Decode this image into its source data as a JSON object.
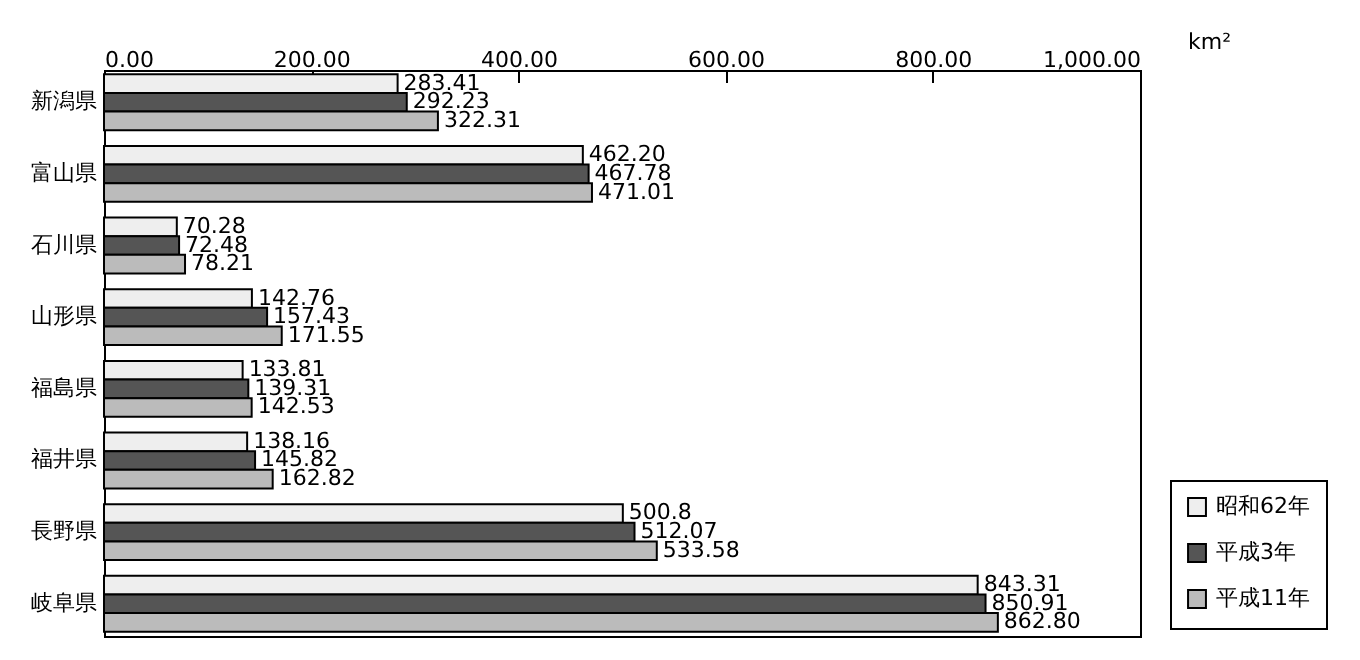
{
  "chart_data": {
    "type": "bar",
    "orientation": "horizontal",
    "xlabel": "km²",
    "categories": [
      "新潟県",
      "富山県",
      "石川県",
      "山形県",
      "福島県",
      "福井県",
      "長野県",
      "岐阜県"
    ],
    "series": [
      {
        "name": "昭和62年",
        "color": "#eeeeee",
        "values": [
          283.41,
          462.2,
          70.28,
          142.76,
          133.81,
          138.16,
          500.8,
          843.31
        ],
        "value_labels": [
          "283.41",
          "462.20",
          "70.28",
          "142.76",
          "133.81",
          "138.16",
          "500.8",
          "843.31"
        ]
      },
      {
        "name": "平成3年",
        "color": "#555555",
        "values": [
          292.23,
          467.78,
          72.48,
          157.43,
          139.31,
          145.82,
          512.07,
          850.91
        ],
        "value_labels": [
          "292.23",
          "467.78",
          "72.48",
          "157.43",
          "139.31",
          "145.82",
          "512.07",
          "850.91"
        ]
      },
      {
        "name": "平成11年",
        "color": "#bbbbbb",
        "values": [
          322.31,
          471.01,
          78.21,
          171.55,
          142.53,
          162.82,
          533.58,
          862.8
        ],
        "value_labels": [
          "322.31",
          "471.01",
          "78.21",
          "171.55",
          "142.53",
          "162.82",
          "533.58",
          "862.80"
        ]
      }
    ],
    "xlim": [
      0,
      1000
    ],
    "xticks": [
      {
        "value": 0,
        "label": "0.00"
      },
      {
        "value": 200,
        "label": "200.00"
      },
      {
        "value": 400,
        "label": "400.00"
      },
      {
        "value": 600,
        "label": "600.00"
      },
      {
        "value": 800,
        "label": "800.00"
      },
      {
        "value": 1000,
        "label": "1,000.00"
      }
    ],
    "grid": false,
    "legend": "bottom right"
  }
}
